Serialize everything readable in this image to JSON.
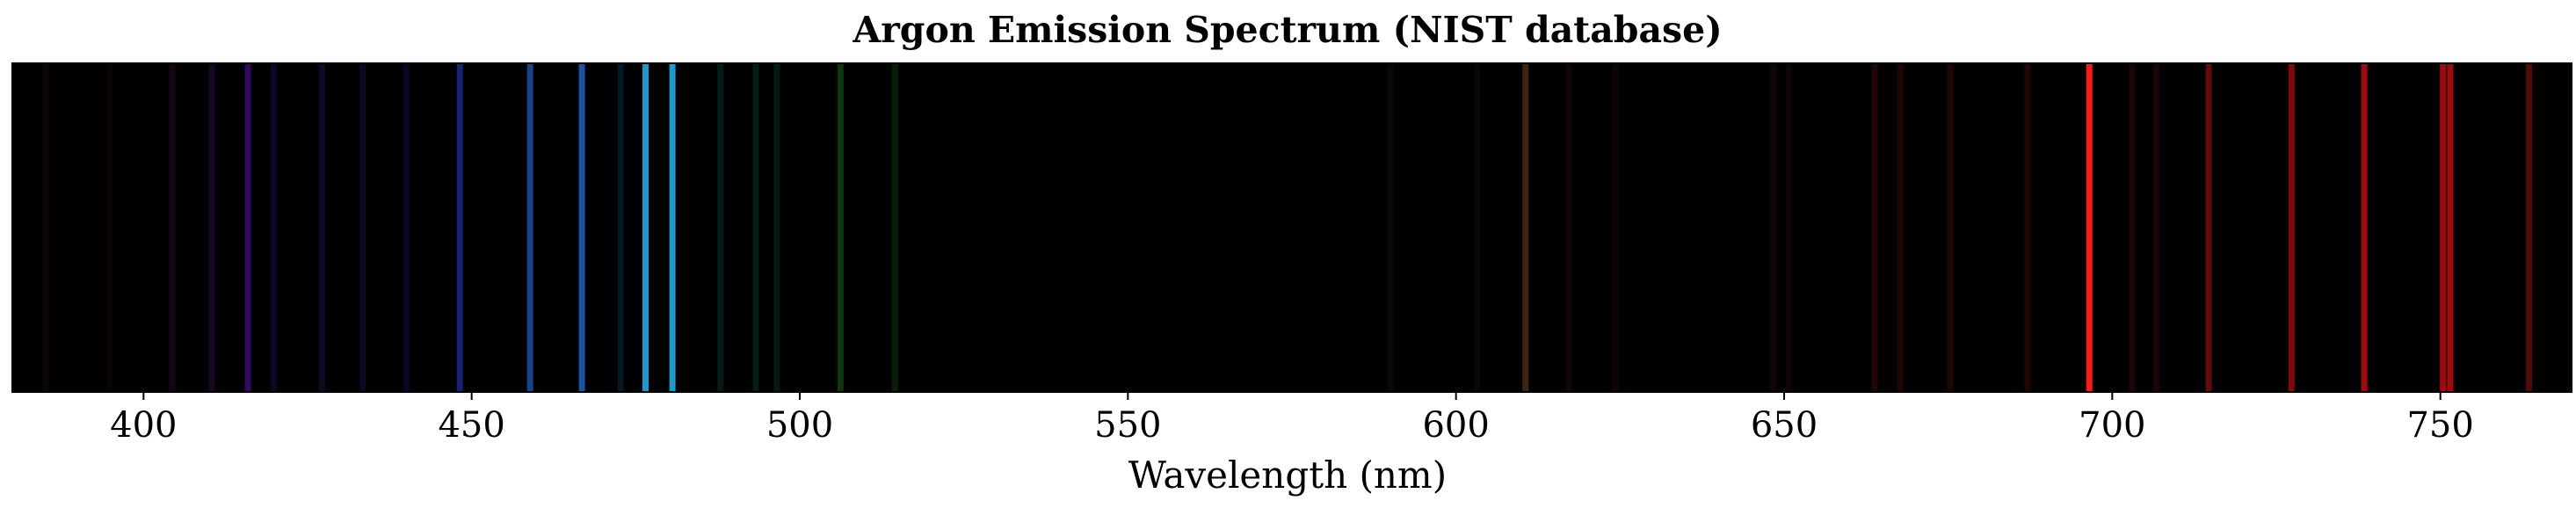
{
  "chart_data": {
    "type": "bar",
    "title": "Argon Emission Spectrum (NIST database)",
    "xlabel": "Wavelength (nm)",
    "ylabel": "",
    "xlim": [
      380,
      770
    ],
    "xticks": [
      400,
      450,
      500,
      550,
      600,
      650,
      700,
      750
    ],
    "grid": false,
    "legend": "none",
    "background": "#000000",
    "lines": [
      {
        "wavelength": 385.1,
        "color": "#1a0a1a",
        "opacity": 0.45
      },
      {
        "wavelength": 394.9,
        "color": "#1a0a1a",
        "opacity": 0.35
      },
      {
        "wavelength": 404.4,
        "color": "#2a0a2a",
        "opacity": 0.5
      },
      {
        "wavelength": 410.4,
        "color": "#2a0a3a",
        "opacity": 0.6
      },
      {
        "wavelength": 415.9,
        "color": "#3a0a6a",
        "opacity": 0.9
      },
      {
        "wavelength": 419.8,
        "color": "#200a45",
        "opacity": 0.5
      },
      {
        "wavelength": 427.2,
        "color": "#15154a",
        "opacity": 0.5
      },
      {
        "wavelength": 433.4,
        "color": "#15154a",
        "opacity": 0.45
      },
      {
        "wavelength": 440.1,
        "color": "#10104a",
        "opacity": 0.5
      },
      {
        "wavelength": 448.2,
        "color": "#1a2a8a",
        "opacity": 0.85
      },
      {
        "wavelength": 458.9,
        "color": "#1a4a9a",
        "opacity": 0.9
      },
      {
        "wavelength": 466.8,
        "color": "#1a5aa8",
        "opacity": 0.95
      },
      {
        "wavelength": 472.7,
        "color": "#0a304a",
        "opacity": 0.5
      },
      {
        "wavelength": 476.5,
        "color": "#1a9ad0",
        "opacity": 1.0
      },
      {
        "wavelength": 480.6,
        "color": "#1a9ad0",
        "opacity": 1.0
      },
      {
        "wavelength": 487.9,
        "color": "#0a3a3a",
        "opacity": 0.45
      },
      {
        "wavelength": 493.3,
        "color": "#0a3a2a",
        "opacity": 0.5
      },
      {
        "wavelength": 496.5,
        "color": "#0a3a2a",
        "opacity": 0.45
      },
      {
        "wavelength": 506.2,
        "color": "#104a14",
        "opacity": 0.75
      },
      {
        "wavelength": 514.5,
        "color": "#0a3a0a",
        "opacity": 0.55
      },
      {
        "wavelength": 590.0,
        "color": "#1a1a0a",
        "opacity": 0.35
      },
      {
        "wavelength": 603.2,
        "color": "#1a100a",
        "opacity": 0.35
      },
      {
        "wavelength": 610.6,
        "color": "#4a2a1a",
        "opacity": 0.85
      },
      {
        "wavelength": 617.2,
        "color": "#2a100a",
        "opacity": 0.4
      },
      {
        "wavelength": 624.3,
        "color": "#2a0a0a",
        "opacity": 0.35
      },
      {
        "wavelength": 648.3,
        "color": "#2a0a0a",
        "opacity": 0.45
      },
      {
        "wavelength": 650.7,
        "color": "#2a0a0a",
        "opacity": 0.45
      },
      {
        "wavelength": 663.8,
        "color": "#3a0a0a",
        "opacity": 0.6
      },
      {
        "wavelength": 667.7,
        "color": "#3a0a0a",
        "opacity": 0.55
      },
      {
        "wavelength": 675.3,
        "color": "#3a0a0a",
        "opacity": 0.55
      },
      {
        "wavelength": 687.1,
        "color": "#3a0a0a",
        "opacity": 0.55
      },
      {
        "wavelength": 696.5,
        "color": "#ff1a1a",
        "opacity": 1.0
      },
      {
        "wavelength": 703.0,
        "color": "#3a0a0a",
        "opacity": 0.5
      },
      {
        "wavelength": 706.7,
        "color": "#3a0a0a",
        "opacity": 0.5
      },
      {
        "wavelength": 714.7,
        "color": "#6a0a0a",
        "opacity": 0.95
      },
      {
        "wavelength": 727.3,
        "color": "#8a0a0a",
        "opacity": 0.95
      },
      {
        "wavelength": 738.4,
        "color": "#a00a0a",
        "opacity": 1.0
      },
      {
        "wavelength": 750.4,
        "color": "#a00a0a",
        "opacity": 1.0
      },
      {
        "wavelength": 751.5,
        "color": "#a00a0a",
        "opacity": 1.0
      },
      {
        "wavelength": 763.5,
        "color": "#5a0a0a",
        "opacity": 0.9
      }
    ]
  }
}
